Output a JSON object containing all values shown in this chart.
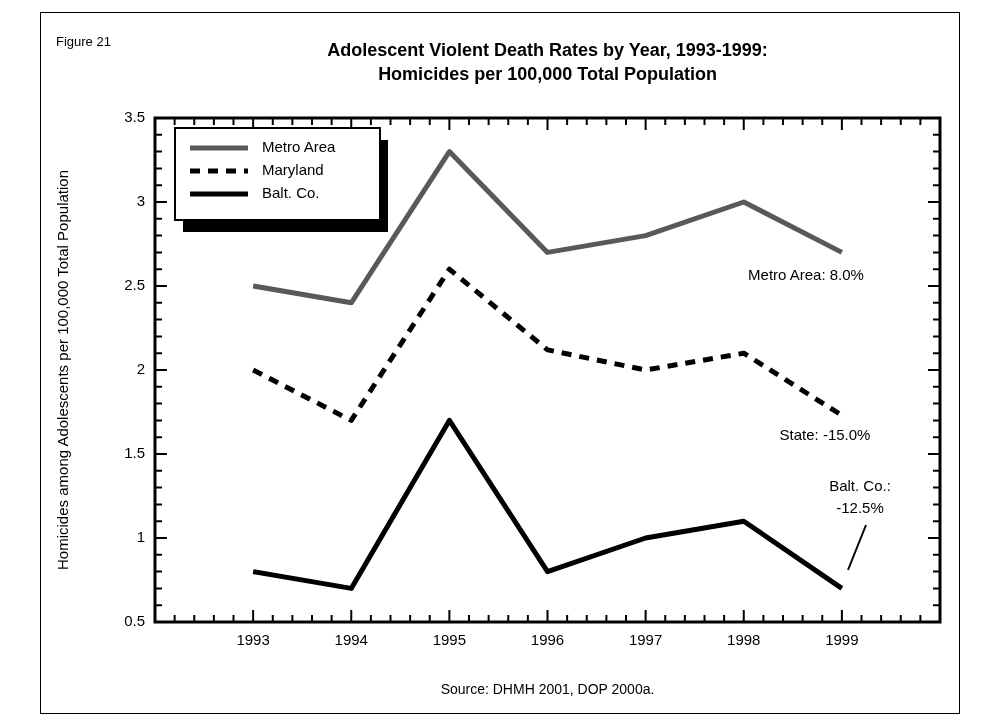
{
  "chart_data": {
    "type": "line",
    "title": "Adolescent Violent Death Rates by Year, 1993-1999:",
    "subtitle": "Homicides per 100,000 Total Population",
    "ylabel": "Homicides among Adolescents per 100,000 Total Population",
    "x": [
      1993,
      1994,
      1995,
      1996,
      1997,
      1998,
      1999
    ],
    "series": [
      {
        "name": "Metro Area",
        "color": "#595959",
        "line_style": "solid",
        "values": [
          2.5,
          2.4,
          3.3,
          2.7,
          2.8,
          3.0,
          2.7
        ]
      },
      {
        "name": "Maryland",
        "color": "#000000",
        "line_style": "dashed",
        "values": [
          2.0,
          1.7,
          2.6,
          2.12,
          2.0,
          2.1,
          1.73
        ]
      },
      {
        "name": "Balt. Co.",
        "color": "#000000",
        "line_style": "solid",
        "values": [
          0.8,
          0.7,
          1.7,
          0.8,
          1.0,
          1.1,
          0.7
        ]
      }
    ],
    "xlim": [
      1992,
      2000
    ],
    "xticks": [
      {
        "value": 1992,
        "label": null
      },
      {
        "value": 1992.2,
        "label": null
      },
      {
        "value": 1992.4,
        "label": null
      },
      {
        "value": 1992.6,
        "label": null
      },
      {
        "value": 1992.8,
        "label": null
      },
      1993,
      {
        "value": 1993.2,
        "label": null
      },
      {
        "value": 1993.4,
        "label": null
      },
      {
        "value": 1993.6,
        "label": null
      },
      {
        "value": 1993.8,
        "label": null
      },
      1994,
      {
        "value": 1994.2,
        "label": null
      },
      {
        "value": 1994.4,
        "label": null
      },
      {
        "value": 1994.6,
        "label": null
      },
      {
        "value": 1994.8,
        "label": null
      },
      1995,
      {
        "value": 1995.2,
        "label": null
      },
      {
        "value": 1995.4,
        "label": null
      },
      {
        "value": 1995.6,
        "label": null
      },
      {
        "value": 1995.8,
        "label": null
      },
      1996,
      {
        "value": 1996.2,
        "label": null
      },
      {
        "value": 1996.4,
        "label": null
      },
      {
        "value": 1996.6,
        "label": null
      },
      {
        "value": 1996.8,
        "label": null
      },
      1997,
      {
        "value": 1997.2,
        "label": null
      },
      {
        "value": 1997.4,
        "label": null
      },
      {
        "value": 1997.6,
        "label": null
      },
      {
        "value": 1997.8,
        "label": null
      },
      1998,
      {
        "value": 1998.2,
        "label": null
      },
      {
        "value": 1998.4,
        "label": null
      },
      {
        "value": 1998.6,
        "label": null
      },
      {
        "value": 1998.8,
        "label": null
      },
      1999,
      {
        "value": 1999.2,
        "label": null
      },
      {
        "value": 1999.4,
        "label": null
      },
      {
        "value": 1999.6,
        "label": null
      },
      {
        "value": 1999.8,
        "label": null
      },
      {
        "value": 2000,
        "label": null
      }
    ],
    "ylim": [
      0.5,
      3.5
    ],
    "yticks": [
      0.5,
      {
        "value": 0.6,
        "label": null
      },
      {
        "value": 0.7,
        "label": null
      },
      {
        "value": 0.8,
        "label": null
      },
      {
        "value": 0.9,
        "label": null
      },
      1,
      {
        "value": 1.1,
        "label": null
      },
      {
        "value": 1.2,
        "label": null
      },
      {
        "value": 1.3,
        "label": null
      },
      {
        "value": 1.4,
        "label": null
      },
      1.5,
      {
        "value": 1.6,
        "label": null
      },
      {
        "value": 1.7,
        "label": null
      },
      {
        "value": 1.8,
        "label": null
      },
      {
        "value": 1.9,
        "label": null
      },
      2,
      {
        "value": 2.1,
        "label": null
      },
      {
        "value": 2.2,
        "label": null
      },
      {
        "value": 2.3,
        "label": null
      },
      {
        "value": 2.4,
        "label": null
      },
      2.5,
      {
        "value": 2.6,
        "label": null
      },
      {
        "value": 2.7,
        "label": null
      },
      {
        "value": 2.8,
        "label": null
      },
      {
        "value": 2.9,
        "label": null
      },
      3,
      {
        "value": 3.1,
        "label": null
      },
      {
        "value": 3.2,
        "label": null
      },
      {
        "value": 3.3,
        "label": null
      },
      {
        "value": 3.4,
        "label": null
      },
      3.5
    ],
    "grid": false,
    "legend": "top left",
    "marker": "none",
    "annotations": [
      "Figure 21",
      "Metro Area: 8.0%",
      "State: -15.0%",
      "Balt. Co.:\n-12.5%",
      "Source: DHMH 2001, DOP 2000a."
    ]
  }
}
